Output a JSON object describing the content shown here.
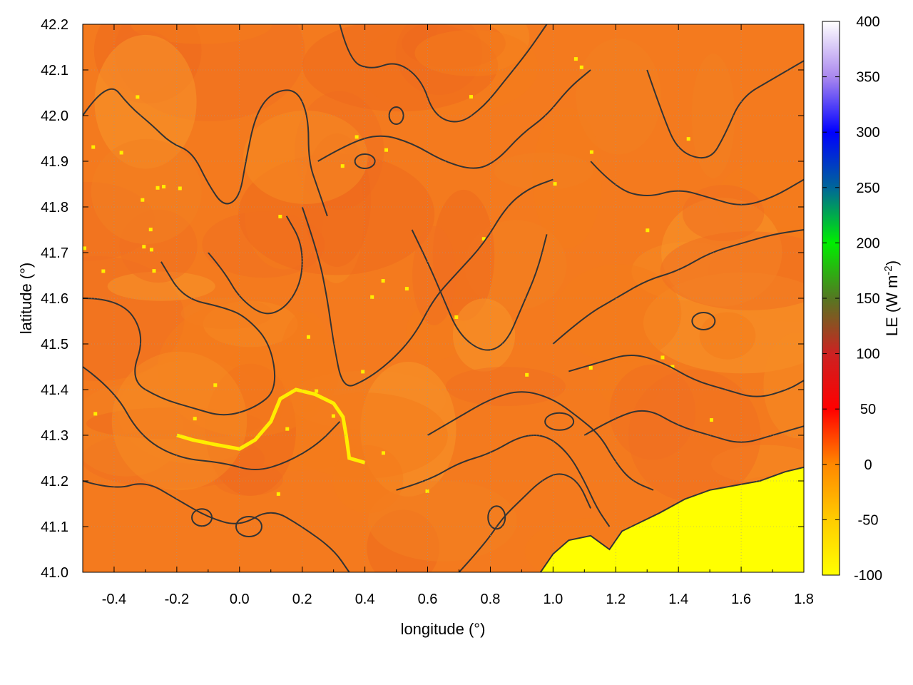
{
  "chart_data": {
    "type": "heatmap",
    "title": "",
    "xlabel": "longitude (°)",
    "ylabel": "latitude (°)",
    "xlim": [
      -0.5,
      1.8
    ],
    "ylim": [
      41.0,
      42.2
    ],
    "x_ticks": [
      -0.4,
      -0.2,
      0.0,
      0.2,
      0.4,
      0.6,
      0.8,
      1.0,
      1.2,
      1.4,
      1.6,
      1.8
    ],
    "x_tick_labels": [
      "-0.4",
      "-0.2",
      "0.0",
      "0.2",
      "0.4",
      "0.6",
      "0.8",
      "1.0",
      "1.2",
      "1.4",
      "1.6",
      "1.8"
    ],
    "y_ticks": [
      41.0,
      41.1,
      41.2,
      41.3,
      41.4,
      41.5,
      41.6,
      41.7,
      41.8,
      41.9,
      42.0,
      42.1,
      42.2
    ],
    "y_tick_labels": [
      "41.0",
      "41.1",
      "41.2",
      "41.3",
      "41.4",
      "41.5",
      "41.6",
      "41.7",
      "41.8",
      "41.9",
      "42.0",
      "42.1",
      "42.2"
    ],
    "grid": true,
    "colorbar": {
      "label": "LE (W m",
      "label_superscript": "-2",
      "label_close": ")",
      "range": [
        -100,
        400
      ],
      "ticks": [
        -100,
        -50,
        0,
        50,
        100,
        150,
        200,
        250,
        300,
        350,
        400
      ],
      "tick_labels": [
        "-100",
        "-50",
        "0",
        "50",
        "100",
        "150",
        "200",
        "250",
        "300",
        "350",
        "400"
      ],
      "stops": [
        {
          "value": -100,
          "color": "#ffff00"
        },
        {
          "value": -50,
          "color": "#ffcc00"
        },
        {
          "value": 0,
          "color": "#ff8800"
        },
        {
          "value": 50,
          "color": "#ff0000"
        },
        {
          "value": 100,
          "color": "#cc2222"
        },
        {
          "value": 150,
          "color": "#557722"
        },
        {
          "value": 200,
          "color": "#00ee00"
        },
        {
          "value": 250,
          "color": "#006699"
        },
        {
          "value": 300,
          "color": "#0000ff"
        },
        {
          "value": 350,
          "color": "#aa88ee"
        },
        {
          "value": 400,
          "color": "#ffffff"
        }
      ]
    },
    "field": {
      "dominant_value_range": [
        -25,
        -10
      ],
      "sea_region_value": -95,
      "sea_region_location": "bottom-right",
      "contours": true,
      "contour_color": "#333333"
    },
    "coastline": [
      [
        0.96,
        41.0
      ],
      [
        1.0,
        41.04
      ],
      [
        1.05,
        41.07
      ],
      [
        1.12,
        41.08
      ],
      [
        1.18,
        41.05
      ],
      [
        1.22,
        41.09
      ],
      [
        1.28,
        41.11
      ],
      [
        1.34,
        41.13
      ],
      [
        1.42,
        41.16
      ],
      [
        1.5,
        41.18
      ],
      [
        1.58,
        41.19
      ],
      [
        1.66,
        41.2
      ],
      [
        1.74,
        41.22
      ],
      [
        1.8,
        41.23
      ]
    ]
  }
}
